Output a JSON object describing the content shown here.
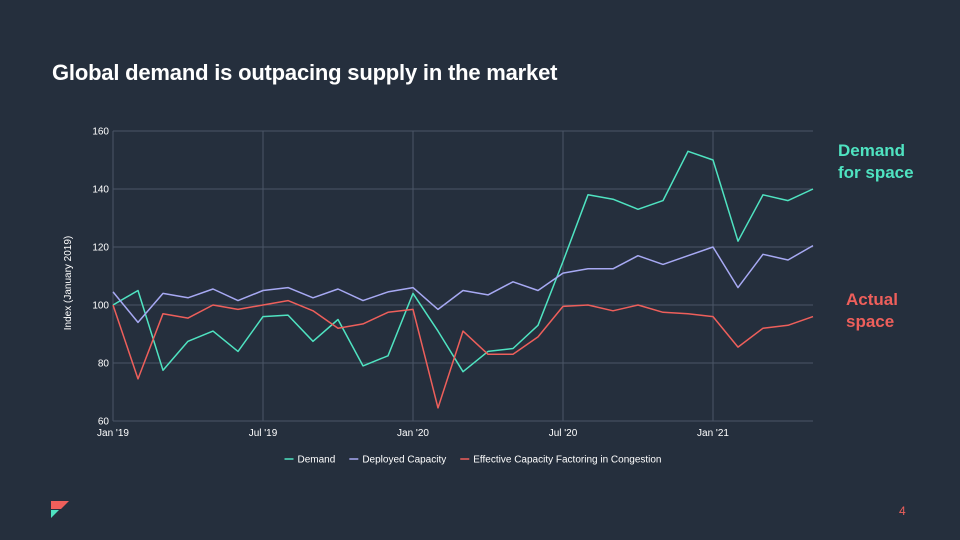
{
  "slide": {
    "title": "Global demand is outpacing supply in the market",
    "page_number": "4"
  },
  "callouts": {
    "demand": {
      "line1": "Demand",
      "line2": "for space",
      "color": "#4fe3c1"
    },
    "actual": {
      "line1": "Actual",
      "line2": "space",
      "color": "#ee5f5b"
    }
  },
  "colors": {
    "background": "#252f3d",
    "grid": "#4a5566",
    "axis_text": "#ffffff",
    "accent_red": "#ee5f5b",
    "accent_teal": "#4fe3c1"
  },
  "chart_data": {
    "type": "line",
    "title": "",
    "ylabel": "Index (January 2019)",
    "xlabel": "",
    "ylim": [
      60,
      160
    ],
    "yticks": [
      60,
      80,
      100,
      120,
      140,
      160
    ],
    "x": [
      "2019-01",
      "2019-02",
      "2019-03",
      "2019-04",
      "2019-05",
      "2019-06",
      "2019-07",
      "2019-08",
      "2019-09",
      "2019-10",
      "2019-11",
      "2019-12",
      "2020-01",
      "2020-02",
      "2020-03",
      "2020-04",
      "2020-05",
      "2020-06",
      "2020-07",
      "2020-08",
      "2020-09",
      "2020-10",
      "2020-11",
      "2020-12",
      "2021-01",
      "2021-02",
      "2021-03",
      "2021-04",
      "2021-05"
    ],
    "xticks": [
      {
        "index": 0,
        "label": "Jan '19"
      },
      {
        "index": 6,
        "label": "Jul '19"
      },
      {
        "index": 12,
        "label": "Jan '20"
      },
      {
        "index": 18,
        "label": "Jul '20"
      },
      {
        "index": 24,
        "label": "Jan '21"
      }
    ],
    "legend_position": "bottom",
    "series": [
      {
        "name": "Demand",
        "color": "#4fe3c1",
        "values": [
          100,
          105,
          77.5,
          87.5,
          91,
          84,
          96,
          96.5,
          87.5,
          95,
          79,
          82.5,
          104,
          91,
          77,
          84,
          85,
          93,
          115,
          138,
          136.5,
          133,
          136,
          153,
          150,
          122,
          138,
          136,
          140
        ]
      },
      {
        "name": "Deployed Capacity",
        "color": "#a7a9f3",
        "values": [
          104.5,
          94,
          104,
          102.5,
          105.5,
          101.5,
          105,
          106,
          102.5,
          105.5,
          101.5,
          104.5,
          106,
          98.5,
          105,
          103.5,
          108,
          105,
          111,
          112.5,
          112.5,
          117,
          114,
          117,
          120,
          106,
          117.5,
          115.5,
          120.5
        ]
      },
      {
        "name": "Effective Capacity Factoring in Congestion",
        "color": "#ee5f5b",
        "values": [
          100,
          74.5,
          97,
          95.5,
          100,
          98.5,
          100,
          101.5,
          98,
          92,
          93.5,
          97.5,
          98.5,
          64.5,
          91,
          83,
          83,
          89,
          99.5,
          100,
          98,
          100,
          97.5,
          97,
          96,
          85.5,
          92,
          93,
          96
        ]
      }
    ]
  }
}
